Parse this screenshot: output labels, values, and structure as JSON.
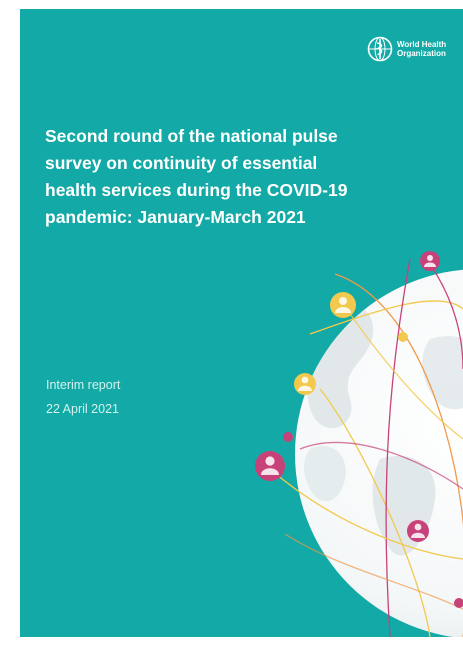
{
  "organization": {
    "name": "World Health\nOrganization"
  },
  "title_lines": [
    "Second round of the national pulse",
    "survey on continuity of essential",
    "health services during the COVID-19",
    "pandemic: January-March 2021"
  ],
  "report_type": "Interim report",
  "date": "22 April 2021",
  "colors": {
    "background": "#12a9a6",
    "text": "#ffffff",
    "accent_pink": "#c8427a",
    "accent_gold": "#f2c94c",
    "accent_orange": "#f2994a"
  }
}
